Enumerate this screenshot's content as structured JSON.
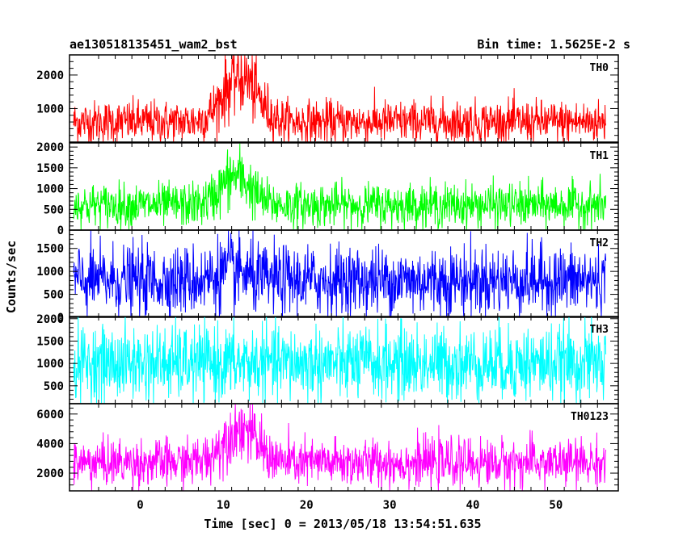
{
  "header": {
    "title": "ae130518135451_wam2_bst",
    "bin_time": "Bin time: 1.5625E-2 s"
  },
  "chart_data": {
    "type": "line",
    "title": "ae130518135451_wam2_bst",
    "xlabel": "Time [sec] 0 = 2013/05/18 13:54:51.635",
    "ylabel": "Counts/sec",
    "xlim": [
      -8.5,
      57.5
    ],
    "x_ticks": [
      0,
      10,
      20,
      30,
      40,
      50
    ],
    "x_tick_labels": [
      "0",
      "10",
      "20",
      "30",
      "40",
      "50"
    ],
    "x_data_range": [
      -8,
      56
    ],
    "grid": false,
    "panels": [
      {
        "name": "TH0",
        "color": "#ff0000",
        "ylim": [
          0,
          2600
        ],
        "y_ticks": [
          1000,
          2000
        ],
        "y_tick_labels": [
          "1000",
          "2000"
        ],
        "baseline": 600,
        "noise": 320,
        "peak": {
          "center": 12,
          "amplitude": 1400,
          "width": 2.8
        }
      },
      {
        "name": "TH1",
        "color": "#00ff00",
        "ylim": [
          0,
          2100
        ],
        "y_ticks": [
          0,
          500,
          1000,
          1500,
          2000
        ],
        "y_tick_labels": [
          "0",
          "500",
          "1000",
          "1500",
          "2000"
        ],
        "baseline": 600,
        "noise": 260,
        "peak": {
          "center": 11.5,
          "amplitude": 700,
          "width": 2.5
        }
      },
      {
        "name": "TH2",
        "color": "#0000ff",
        "ylim": [
          0,
          1900
        ],
        "y_ticks": [
          0,
          500,
          1000,
          1500
        ],
        "y_tick_labels": [
          "0",
          "500",
          "1000",
          "1500"
        ],
        "baseline": 800,
        "noise": 380,
        "peak": {
          "center": 11,
          "amplitude": 200,
          "width": 2.5
        }
      },
      {
        "name": "TH3",
        "color": "#00ffff",
        "ylim": [
          100,
          2050
        ],
        "y_ticks": [
          500,
          1000,
          1500,
          2000
        ],
        "y_tick_labels": [
          "500",
          "1000",
          "1500",
          "2000"
        ],
        "baseline": 1000,
        "noise": 420,
        "peak": {
          "center": 11,
          "amplitude": 0,
          "width": 2.5
        }
      },
      {
        "name": "TH0123",
        "color": "#ff00ff",
        "ylim": [
          800,
          6700
        ],
        "y_ticks": [
          2000,
          4000,
          6000
        ],
        "y_tick_labels": [
          "2000",
          "4000",
          "6000"
        ],
        "baseline": 2700,
        "noise": 800,
        "peak": {
          "center": 12,
          "amplitude": 2400,
          "width": 2.8
        }
      }
    ]
  }
}
